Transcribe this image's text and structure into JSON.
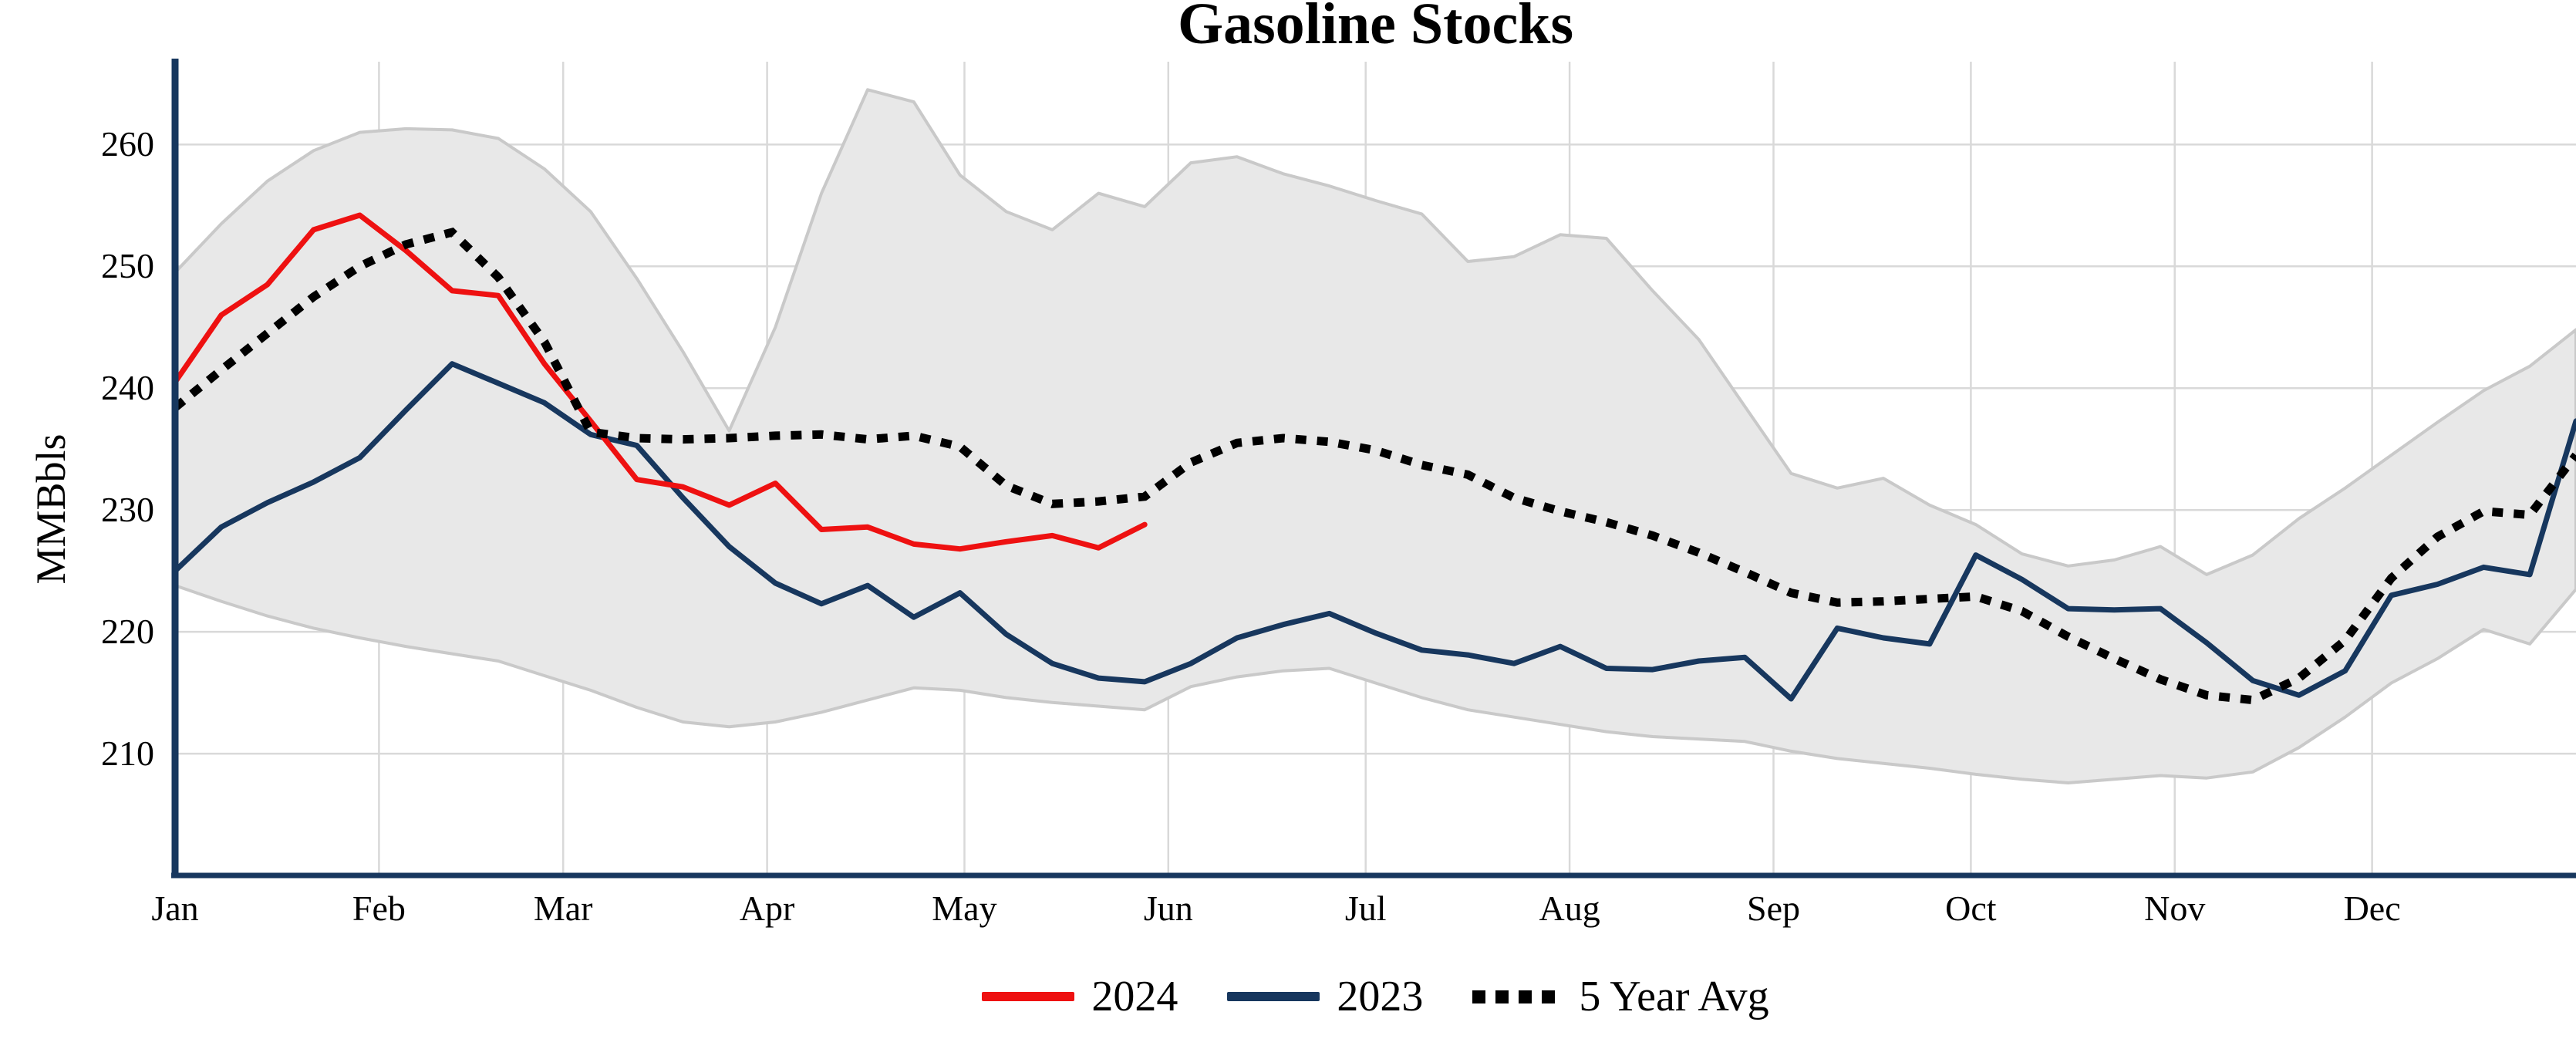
{
  "title": "Gasoline Stocks",
  "y_axis": {
    "label": "MMBbls",
    "ticks": [
      210,
      220,
      230,
      240,
      250,
      260
    ],
    "range_min": 200,
    "range_max": 266.8
  },
  "x_axis": {
    "months": [
      "Jan",
      "Feb",
      "Mar",
      "Apr",
      "May",
      "Jun",
      "Jul",
      "Aug",
      "Sep",
      "Oct",
      "Nov",
      "Dec"
    ],
    "month_start_days": [
      0,
      31,
      59,
      90,
      120,
      151,
      181,
      212,
      243,
      273,
      304,
      334
    ],
    "days_in_year": 365
  },
  "legend": {
    "items": [
      {
        "label": "2024",
        "color": "#ee1111",
        "style": "solid"
      },
      {
        "label": "2023",
        "color": "#17375e",
        "style": "solid"
      },
      {
        "label": "5 Year Avg",
        "color": "#000000",
        "style": "dotted"
      }
    ]
  },
  "colors": {
    "red_2024": "#ee1111",
    "navy_2023": "#17375e",
    "avg_black": "#000000",
    "band_fill": "#e8e8e8",
    "band_edge": "#c9c9c9",
    "gridline": "#d9d9d9",
    "axis_spine": "#17375e",
    "background": "#ffffff"
  },
  "chart_data": {
    "type": "line",
    "title": "Gasoline Stocks",
    "ylabel": "MMBbls",
    "xlabel": "",
    "x_unit": "weekly points, Jan through Dec",
    "weeks_total": 53,
    "ylim": [
      200,
      266.8
    ],
    "grid": true,
    "legend_position": "bottom-center",
    "series": [
      {
        "name": "2024",
        "color": "#ee1111",
        "dash": false,
        "values": [
          240.5,
          246.0,
          248.5,
          253.0,
          254.2,
          251.3,
          248.0,
          247.6,
          242.0,
          237.3,
          232.5,
          231.9,
          230.4,
          232.2,
          228.4,
          228.6,
          227.2,
          226.8,
          227.4,
          227.9,
          226.9,
          228.8
        ]
      },
      {
        "name": "2023",
        "color": "#17375e",
        "dash": false,
        "values": [
          225.0,
          228.6,
          230.6,
          232.3,
          234.3,
          238.2,
          242.0,
          240.4,
          238.8,
          236.2,
          235.3,
          231.0,
          227.0,
          224.0,
          222.3,
          223.8,
          221.2,
          223.2,
          219.8,
          217.4,
          216.2,
          215.9,
          217.4,
          219.5,
          220.6,
          221.5,
          219.9,
          218.5,
          218.1,
          217.4,
          218.8,
          217.0,
          216.9,
          217.6,
          217.9,
          214.5,
          220.3,
          219.5,
          219.0,
          226.3,
          224.3,
          221.9,
          221.8,
          221.9,
          219.1,
          216.0,
          214.8,
          216.8,
          223.0,
          223.9,
          225.3,
          224.7,
          237.3
        ]
      },
      {
        "name": "5 Year Avg",
        "color": "#000000",
        "dash": true,
        "values": [
          238.4,
          241.5,
          244.5,
          247.5,
          250.0,
          251.8,
          252.8,
          249.1,
          243.8,
          236.4,
          235.9,
          235.8,
          235.9,
          236.1,
          236.2,
          235.8,
          236.1,
          235.2,
          232.0,
          230.5,
          230.7,
          231.1,
          233.9,
          235.5,
          235.9,
          235.6,
          234.9,
          233.7,
          232.9,
          231.0,
          229.9,
          229.0,
          227.9,
          226.5,
          224.9,
          223.2,
          222.4,
          222.5,
          222.7,
          222.9,
          221.7,
          219.6,
          217.8,
          216.1,
          214.8,
          214.4,
          216.2,
          219.3,
          224.4,
          227.8,
          229.9,
          229.6,
          234.5
        ]
      }
    ],
    "band": {
      "name": "5 Year Range",
      "fill": "#e8e8e8",
      "edge": "#c9c9c9",
      "upper": [
        249.5,
        253.5,
        257.0,
        259.5,
        261.0,
        261.3,
        261.2,
        260.5,
        258.0,
        254.5,
        249.0,
        243.0,
        236.5,
        245.0,
        256.0,
        264.5,
        263.5,
        257.5,
        254.5,
        253.0,
        256.0,
        254.9,
        258.5,
        259.0,
        257.6,
        256.6,
        255.4,
        254.3,
        250.4,
        250.8,
        252.6,
        252.3,
        248.0,
        244.0,
        238.5,
        233.0,
        231.8,
        232.6,
        230.4,
        228.8,
        226.4,
        225.4,
        225.9,
        227.0,
        224.7,
        226.3,
        229.3,
        231.8,
        234.5,
        237.2,
        239.8,
        241.8,
        244.8
      ],
      "lower": [
        223.8,
        222.5,
        221.3,
        220.3,
        219.5,
        218.8,
        218.2,
        217.6,
        216.4,
        215.2,
        213.8,
        212.6,
        212.2,
        212.6,
        213.4,
        214.4,
        215.4,
        215.2,
        214.6,
        214.2,
        213.9,
        213.6,
        215.5,
        216.3,
        216.8,
        217.0,
        215.8,
        214.6,
        213.6,
        213.0,
        212.4,
        211.8,
        211.4,
        211.2,
        211.0,
        210.2,
        209.6,
        209.2,
        208.8,
        208.3,
        207.9,
        207.6,
        207.9,
        208.2,
        208.0,
        208.5,
        210.5,
        213.0,
        215.8,
        217.8,
        220.2,
        219.0,
        223.5
      ]
    },
    "geometry": {
      "plot_left": 227,
      "plot_right": 3340,
      "plot_top": 80,
      "plot_bottom": 1135
    }
  }
}
